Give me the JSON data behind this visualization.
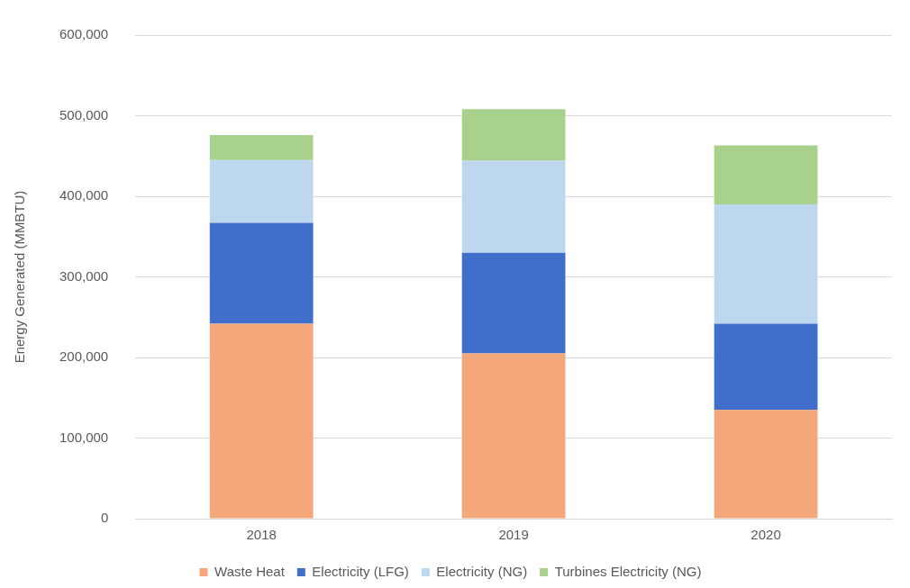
{
  "chart_data": {
    "type": "bar",
    "stacked": true,
    "ylabel": "Energy Generated (MMBTU)",
    "categories": [
      "2018",
      "2019",
      "2020"
    ],
    "series": [
      {
        "name": "Waste Heat",
        "color": "#f4a77a",
        "values": [
          242000,
          205000,
          135000
        ]
      },
      {
        "name": "Electricity (LFG)",
        "color": "#3f6fcb",
        "values": [
          125000,
          125000,
          107000
        ]
      },
      {
        "name": "Electricity (NG)",
        "color": "#bdd7ee",
        "values": [
          78000,
          114000,
          148000
        ]
      },
      {
        "name": "Turbines Electricity (NG)",
        "color": "#a9d18e",
        "values": [
          31000,
          64000,
          73000
        ]
      }
    ],
    "ylim": [
      0,
      600000
    ],
    "yticks": [
      0,
      {
        "value": 100000,
        "label": "100,000"
      },
      {
        "value": 200000,
        "label": "200,000"
      },
      {
        "value": 300000,
        "label": "300,000"
      },
      {
        "value": 400000,
        "label": "400,000"
      },
      {
        "value": 500000,
        "label": "500,000"
      },
      {
        "value": 600000,
        "label": "600,000"
      }
    ],
    "grid": "y",
    "legend": "bottom"
  }
}
